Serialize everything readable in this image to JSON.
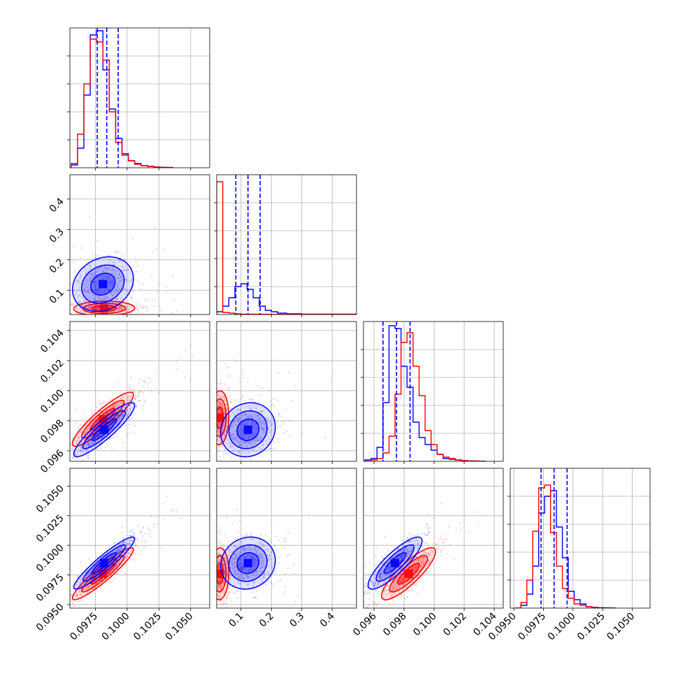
{
  "figure": {
    "type": "corner-plot",
    "series": [
      {
        "color": "#0000ff"
      },
      {
        "color": "#ff0000"
      }
    ],
    "grid": true,
    "quantile_line_color": "#0000ff"
  },
  "chart_data": [
    {
      "panel": "hist-0",
      "type": "histogram-step",
      "xlim": [
        0.0955,
        0.1065
      ],
      "ylim": [
        0,
        100
      ],
      "bins_start": 0.0956,
      "bin_width": 0.0005,
      "series": [
        {
          "color": "#0000ff",
          "values": [
            2,
            14,
            52,
            95,
            98,
            70,
            42,
            21,
            10,
            5,
            3,
            1.5,
            1,
            0.5,
            0.3,
            0.2
          ]
        },
        {
          "color": "#ff0000",
          "values": [
            3,
            24,
            60,
            92,
            90,
            77,
            40,
            18,
            9,
            5,
            2.5,
            1.5,
            1,
            0.5,
            0.3,
            0.2
          ]
        }
      ],
      "quantile_lines": [
        0.09765,
        0.0984,
        0.0993
      ]
    },
    {
      "panel": "hist-1",
      "type": "histogram-step",
      "xlim": [
        0.02,
        0.48
      ],
      "ylim": [
        0,
        100
      ],
      "series": [
        {
          "color": "#0000ff",
          "bins": [
            0.02,
            0.04,
            0.06,
            0.08,
            0.1,
            0.12,
            0.14,
            0.16,
            0.18,
            0.2,
            0.22,
            0.25,
            0.3,
            0.48
          ],
          "values": [
            2,
            6,
            12,
            20,
            22,
            18,
            12,
            6,
            3,
            2,
            1,
            0.5,
            0.3
          ]
        },
        {
          "color": "#ff0000",
          "bins": [
            0.02,
            0.04,
            0.06,
            0.08,
            0.1,
            0.15,
            0.2,
            0.3,
            0.48
          ],
          "values": [
            95,
            1.5,
            1,
            0.5,
            0.3,
            0.2,
            0.1,
            0.1
          ]
        }
      ],
      "quantile_lines": [
        0.083,
        0.123,
        0.163
      ]
    },
    {
      "panel": "hist-2",
      "type": "histogram-step",
      "xlim": [
        0.0953,
        0.1046
      ],
      "ylim": [
        0,
        100
      ],
      "bins_start": 0.0954,
      "bin_width": 0.0004,
      "series": [
        {
          "color": "#0000ff",
          "values": [
            1,
            2,
            10,
            42,
            97,
            95,
            68,
            53,
            28,
            17,
            12,
            8,
            5,
            2,
            1.5,
            1,
            0.5,
            0.3,
            0.2,
            0.1
          ]
        },
        {
          "color": "#ff0000",
          "values": [
            0,
            1,
            2,
            6,
            18,
            48,
            85,
            92,
            68,
            47,
            22,
            12,
            5,
            3,
            2,
            1,
            0.5,
            0.3,
            0.2,
            0.1
          ]
        }
      ],
      "quantile_lines": [
        0.0966,
        0.0975,
        0.0984
      ]
    },
    {
      "panel": "hist-3",
      "type": "histogram-step",
      "xlim": [
        0.0947,
        0.1065
      ],
      "ylim": [
        0,
        100
      ],
      "bins_start": 0.0951,
      "bin_width": 0.0005,
      "series": [
        {
          "color": "#0000ff",
          "values": [
            0,
            2,
            10,
            30,
            68,
            80,
            84,
            58,
            36,
            12,
            6,
            3,
            1,
            0.5,
            0.3,
            0.2,
            0.1
          ]
        },
        {
          "color": "#ff0000",
          "values": [
            0,
            4,
            20,
            55,
            86,
            88,
            54,
            30,
            14,
            7,
            3,
            2,
            1,
            0.5,
            0.3,
            0.2,
            0.1
          ]
        }
      ],
      "quantile_lines": [
        0.0973,
        0.0984,
        0.0995
      ]
    },
    {
      "panel": "scatter-1-0",
      "type": "scatter-contour",
      "xlim": [
        0.0955,
        0.1065
      ],
      "ylim": [
        0.02,
        0.48
      ],
      "series": [
        {
          "color": "#0000ff",
          "mean": [
            0.0981,
            0.12
          ],
          "sd": [
            0.0012,
            0.045
          ],
          "corr": 0.2
        },
        {
          "color": "#ff0000",
          "mean": [
            0.0982,
            0.04
          ],
          "sd": [
            0.0012,
            0.012
          ],
          "corr": 0.05
        }
      ]
    },
    {
      "panel": "scatter-2-0",
      "type": "scatter-contour",
      "xlim": [
        0.0955,
        0.1065
      ],
      "ylim": [
        0.0953,
        0.1046
      ],
      "series": [
        {
          "color": "#0000ff",
          "mean": [
            0.0982,
            0.0974
          ],
          "sd": [
            0.0012,
            0.0009
          ],
          "corr": 0.9
        },
        {
          "color": "#ff0000",
          "mean": [
            0.0981,
            0.0981
          ],
          "sd": [
            0.0012,
            0.0009
          ],
          "corr": 0.9
        }
      ]
    },
    {
      "panel": "scatter-2-1",
      "type": "scatter-contour",
      "xlim": [
        0.02,
        0.48
      ],
      "ylim": [
        0.0953,
        0.1046
      ],
      "series": [
        {
          "color": "#0000ff",
          "mean": [
            0.123,
            0.0974
          ],
          "sd": [
            0.045,
            0.0009
          ],
          "corr": 0.1
        },
        {
          "color": "#ff0000",
          "mean": [
            0.03,
            0.0982
          ],
          "sd": [
            0.015,
            0.0009
          ],
          "corr": 0.05
        }
      ]
    },
    {
      "panel": "scatter-3-0",
      "type": "scatter-contour",
      "xlim": [
        0.0955,
        0.1065
      ],
      "ylim": [
        0.0947,
        0.1065
      ],
      "series": [
        {
          "color": "#0000ff",
          "mean": [
            0.0982,
            0.0985
          ],
          "sd": [
            0.0012,
            0.0011
          ],
          "corr": 0.93
        },
        {
          "color": "#ff0000",
          "mean": [
            0.0981,
            0.0976
          ],
          "sd": [
            0.0012,
            0.0011
          ],
          "corr": 0.93
        }
      ]
    },
    {
      "panel": "scatter-3-1",
      "type": "scatter-contour",
      "xlim": [
        0.02,
        0.48
      ],
      "ylim": [
        0.0947,
        0.1065
      ],
      "series": [
        {
          "color": "#0000ff",
          "mean": [
            0.123,
            0.0985
          ],
          "sd": [
            0.045,
            0.0011
          ],
          "corr": 0.1
        },
        {
          "color": "#ff0000",
          "mean": [
            0.03,
            0.0976
          ],
          "sd": [
            0.015,
            0.0011
          ],
          "corr": 0.05
        }
      ]
    },
    {
      "panel": "scatter-3-2",
      "type": "scatter-contour",
      "xlim": [
        0.0953,
        0.1046
      ],
      "ylim": [
        0.0947,
        0.1065
      ],
      "series": [
        {
          "color": "#0000ff",
          "mean": [
            0.0974,
            0.0985
          ],
          "sd": [
            0.0009,
            0.0011
          ],
          "corr": 0.85
        },
        {
          "color": "#ff0000",
          "mean": [
            0.0983,
            0.0976
          ],
          "sd": [
            0.0009,
            0.0011
          ],
          "corr": 0.85
        }
      ]
    }
  ],
  "axes": {
    "col0_x_ticks": [
      "0.0975",
      "0.1000",
      "0.1025",
      "0.1050"
    ],
    "col1_x_ticks": [
      "0.1",
      "0.2",
      "0.3",
      "0.4"
    ],
    "col2_x_ticks": [
      "0.096",
      "0.098",
      "0.100",
      "0.102",
      "0.104"
    ],
    "col3_x_ticks": [
      "0.0950",
      "0.0975",
      "0.1000",
      "0.1025",
      "0.1050"
    ],
    "row1_y_ticks": [
      "0.1",
      "0.2",
      "0.3",
      "0.4"
    ],
    "row2_y_ticks": [
      "0.096",
      "0.098",
      "0.100",
      "0.102",
      "0.104"
    ],
    "row3_y_ticks": [
      "0.0950",
      "0.0975",
      "0.1000",
      "0.1025",
      "0.1050"
    ]
  }
}
